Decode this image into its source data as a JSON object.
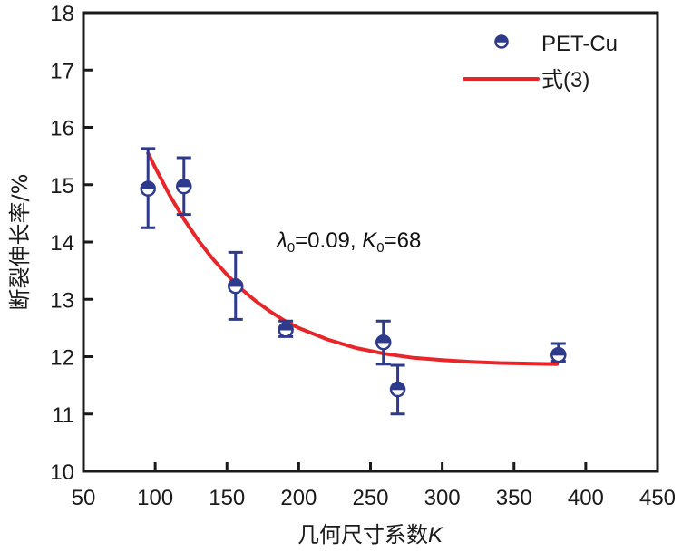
{
  "chart_data": {
    "type": "scatter",
    "title": "",
    "xlabel": "几何尺寸系数",
    "xlabel_italic_suffix": "K",
    "ylabel": "断裂伸长率/%",
    "xlim": [
      50,
      450
    ],
    "ylim": [
      10,
      18
    ],
    "xticks": [
      50,
      100,
      150,
      200,
      250,
      300,
      350,
      400,
      450
    ],
    "yticks": [
      10,
      11,
      12,
      13,
      14,
      15,
      16,
      17,
      18
    ],
    "grid": false,
    "legend_position": "top-right",
    "series": [
      {
        "name": "PET-Cu",
        "kind": "scatter-errorbar",
        "marker": "half-filled-circle",
        "color": "#2e3a8c",
        "points": [
          {
            "x": 95,
            "y": 14.93,
            "err_low": 14.25,
            "err_high": 15.63
          },
          {
            "x": 120,
            "y": 14.97,
            "err_low": 14.48,
            "err_high": 15.47
          },
          {
            "x": 156,
            "y": 13.23,
            "err_low": 12.65,
            "err_high": 13.82
          },
          {
            "x": 191,
            "y": 12.47,
            "err_low": 12.35,
            "err_high": 12.62
          },
          {
            "x": 259,
            "y": 12.25,
            "err_low": 11.87,
            "err_high": 12.62
          },
          {
            "x": 269,
            "y": 11.43,
            "err_low": 11.0,
            "err_high": 11.85
          },
          {
            "x": 381,
            "y": 12.03,
            "err_low": 11.92,
            "err_high": 12.23
          }
        ]
      },
      {
        "name": "式(3)",
        "kind": "line",
        "color": "#e8262a",
        "x": [
          95,
          100,
          110,
          120,
          130,
          140,
          150,
          160,
          170,
          180,
          190,
          200,
          220,
          240,
          260,
          280,
          300,
          320,
          340,
          360,
          380
        ],
        "y": [
          15.55,
          15.3,
          14.82,
          14.4,
          14.03,
          13.71,
          13.43,
          13.18,
          12.97,
          12.79,
          12.63,
          12.5,
          12.3,
          12.15,
          12.05,
          11.98,
          11.94,
          11.91,
          11.89,
          11.88,
          11.87
        ]
      }
    ],
    "annotations": [
      {
        "text_parts": [
          "λ",
          "0",
          "=0.09, ",
          "K",
          "0",
          "=68"
        ],
        "x": 230,
        "y": 14.0
      }
    ]
  }
}
